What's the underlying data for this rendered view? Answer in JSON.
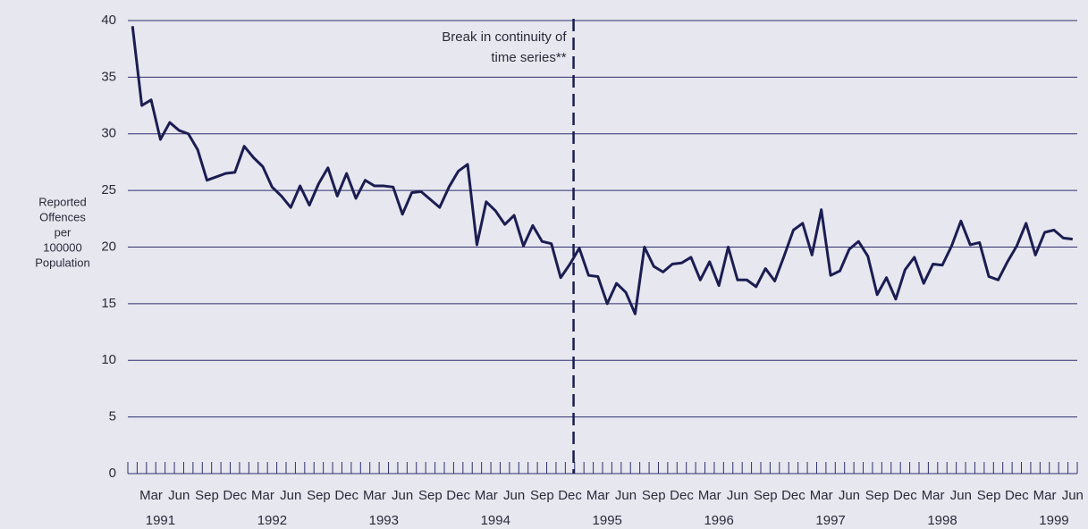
{
  "chart_data": {
    "type": "line",
    "ylabel": [
      "Reported",
      "Offences",
      "per",
      "100000",
      "Population"
    ],
    "annotation": [
      "Break in continuity of",
      "time series**"
    ],
    "categories": [
      null,
      null,
      "Mar",
      null,
      null,
      "Jun",
      null,
      null,
      "Sep",
      null,
      null,
      "Dec",
      null,
      null,
      "Mar",
      null,
      null,
      "Jun",
      null,
      null,
      "Sep",
      null,
      null,
      "Dec",
      null,
      null,
      "Mar",
      null,
      null,
      "Jun",
      null,
      null,
      "Sep",
      null,
      null,
      "Dec",
      null,
      null,
      "Mar",
      null,
      null,
      "Jun",
      null,
      null,
      "Sep",
      null,
      null,
      "Dec",
      null,
      null,
      "Mar",
      null,
      null,
      "Jun",
      null,
      null,
      "Sep",
      null,
      null,
      "Dec",
      null,
      null,
      "Mar",
      null,
      null,
      "Jun",
      null,
      null,
      "Sep",
      null,
      null,
      "Dec",
      null,
      null,
      "Mar",
      null,
      null,
      "Jun",
      null,
      null,
      "Sep",
      null,
      null,
      "Dec",
      null,
      null,
      "Mar",
      null,
      null,
      "Jun",
      null,
      null,
      "Sep",
      null,
      null,
      "Dec",
      null,
      null,
      "Mar",
      null,
      null,
      "Jun"
    ],
    "years": [
      "1991",
      "1992",
      "1993",
      "1994",
      "1995",
      "1996",
      "1997",
      "1998",
      "1999"
    ],
    "series": [
      {
        "color": "#1b1d52",
        "values": [
          39.5,
          32.5,
          33,
          29.5,
          31,
          30.3,
          30,
          28.6,
          25.9,
          26.2,
          26.5,
          26.6,
          28.9,
          27.9,
          27.1,
          25.3,
          24.5,
          23.5,
          25.4,
          23.7,
          25.6,
          27,
          24.5,
          26.5,
          24.3,
          25.9,
          25.4,
          25.4,
          25.3,
          22.9,
          24.8,
          24.9,
          24.2,
          23.5,
          25.3,
          26.7,
          27.3,
          20.2,
          24,
          23.2,
          22,
          22.8,
          20.1,
          21.9,
          20.5,
          20.3,
          17.3,
          18.5,
          19.9,
          17.5,
          17.4,
          15,
          16.8,
          16,
          14.1,
          20,
          18.3,
          17.8,
          18.5,
          18.6,
          19.1,
          17.1,
          18.7,
          16.6,
          20,
          17.1,
          17.1,
          16.5,
          18.1,
          17,
          19.2,
          21.5,
          22.1,
          19.3,
          23.3,
          17.5,
          17.9,
          19.8,
          20.5,
          19.2,
          15.8,
          17.3,
          15.4,
          18,
          19.1,
          16.8,
          18.5,
          18.4,
          20.1,
          22.3,
          20.2,
          20.4,
          17.4,
          17.1,
          18.7,
          20.1,
          22.1,
          19.3,
          21.3,
          21.5,
          20.8,
          20.7
        ]
      }
    ],
    "ylim": [
      0,
      40
    ],
    "yticks": [
      0,
      5,
      10,
      15,
      20,
      25,
      30,
      35,
      40
    ],
    "grid": true
  }
}
